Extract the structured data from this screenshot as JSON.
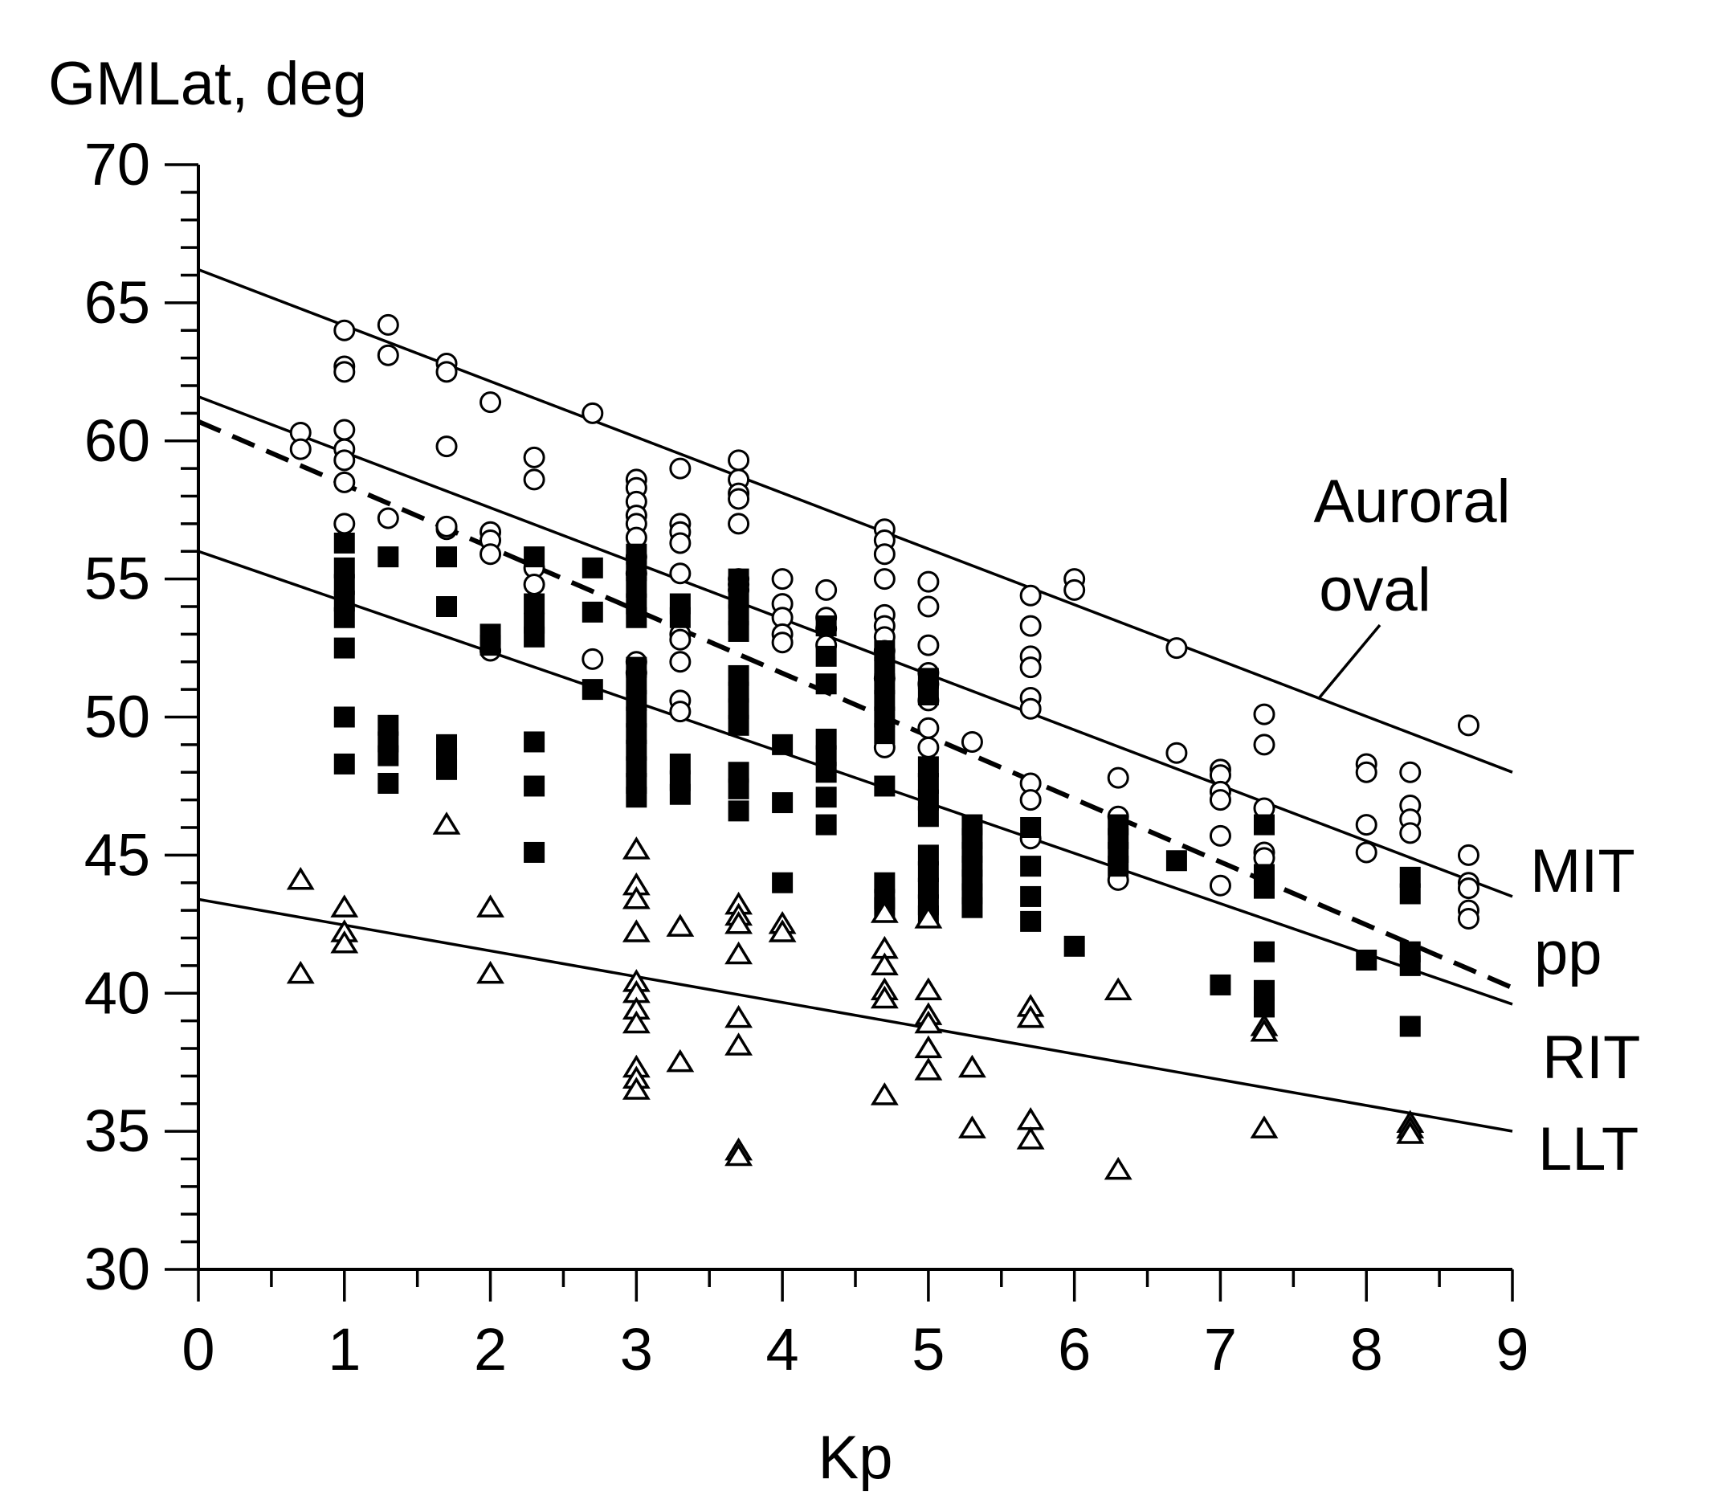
{
  "chart_data": {
    "type": "scatter",
    "title": "",
    "xlabel": "Kp",
    "ylabel": "GMLat, deg",
    "xlim": [
      0,
      9
    ],
    "ylim": [
      30,
      70
    ],
    "xticks": [
      0,
      1,
      2,
      3,
      4,
      5,
      6,
      7,
      8,
      9
    ],
    "yticks": [
      30,
      35,
      40,
      45,
      50,
      55,
      60,
      65,
      70
    ],
    "grid": false,
    "colors": {
      "ink": "#000000",
      "background": "#ffffff"
    },
    "series": [
      {
        "name": "Auroral oval",
        "marker": "open-circle",
        "points": [
          [
            0.7,
            60.3
          ],
          [
            0.7,
            59.7
          ],
          [
            1,
            64
          ],
          [
            1,
            62.7
          ],
          [
            1,
            62.5
          ],
          [
            1,
            60.4
          ],
          [
            1,
            59.7
          ],
          [
            1,
            59.3
          ],
          [
            1,
            58.5
          ],
          [
            1,
            57
          ],
          [
            1.3,
            64.2
          ],
          [
            1.3,
            63.1
          ],
          [
            1.3,
            57.2
          ],
          [
            1.7,
            62.8
          ],
          [
            1.7,
            62.5
          ],
          [
            1.7,
            59.8
          ],
          [
            1.7,
            56.8
          ],
          [
            2,
            61.4
          ],
          [
            2,
            56.7
          ],
          [
            2,
            56.4
          ],
          [
            2,
            55.9
          ],
          [
            2,
            52.4
          ],
          [
            2.3,
            59.4
          ],
          [
            2.3,
            58.6
          ],
          [
            2.3,
            55.4
          ],
          [
            2.3,
            54.8
          ],
          [
            2.7,
            61
          ],
          [
            2.7,
            52.1
          ],
          [
            3,
            58.6
          ],
          [
            3,
            58.3
          ],
          [
            3,
            57.8
          ],
          [
            3,
            57.3
          ],
          [
            3,
            57
          ],
          [
            3,
            56.5
          ],
          [
            3,
            55.8
          ],
          [
            3,
            55.2
          ],
          [
            3,
            52
          ],
          [
            3,
            51.6
          ],
          [
            3.3,
            59
          ],
          [
            3.3,
            57
          ],
          [
            3.3,
            56.7
          ],
          [
            3.3,
            56.3
          ],
          [
            3.3,
            55.2
          ],
          [
            3.3,
            53
          ],
          [
            3.3,
            52.8
          ],
          [
            3.3,
            52
          ],
          [
            3.3,
            50.6
          ],
          [
            3.3,
            50.2
          ],
          [
            3.7,
            59.3
          ],
          [
            3.7,
            58.6
          ],
          [
            3.7,
            58.1
          ],
          [
            3.7,
            57.9
          ],
          [
            3.7,
            57
          ],
          [
            3.7,
            55
          ],
          [
            3.7,
            54.8
          ],
          [
            3.7,
            54.6
          ],
          [
            4,
            55
          ],
          [
            4,
            54.1
          ],
          [
            4,
            53.6
          ],
          [
            4,
            53
          ],
          [
            4,
            52.7
          ],
          [
            4.3,
            54.6
          ],
          [
            4.3,
            53.6
          ],
          [
            4.3,
            53.2
          ],
          [
            4.3,
            52.6
          ],
          [
            4.7,
            56.8
          ],
          [
            4.7,
            56.4
          ],
          [
            4.7,
            55.9
          ],
          [
            4.7,
            55
          ],
          [
            4.7,
            53.7
          ],
          [
            4.7,
            53.3
          ],
          [
            4.7,
            52.9
          ],
          [
            4.7,
            52.4
          ],
          [
            4.7,
            51.4
          ],
          [
            4.7,
            48.9
          ],
          [
            5,
            54.9
          ],
          [
            5,
            54
          ],
          [
            5,
            52.6
          ],
          [
            5,
            51.6
          ],
          [
            5,
            51.2
          ],
          [
            5,
            50.6
          ],
          [
            5,
            49.6
          ],
          [
            5,
            48.9
          ],
          [
            5.3,
            49.1
          ],
          [
            5.7,
            54.4
          ],
          [
            5.7,
            53.3
          ],
          [
            5.7,
            52.2
          ],
          [
            5.7,
            51.8
          ],
          [
            5.7,
            50.7
          ],
          [
            5.7,
            50.3
          ],
          [
            5.7,
            47.6
          ],
          [
            5.7,
            47
          ],
          [
            5.7,
            45.6
          ],
          [
            6,
            55
          ],
          [
            6,
            54.6
          ],
          [
            6.3,
            47.8
          ],
          [
            6.3,
            46.4
          ],
          [
            6.3,
            44.1
          ],
          [
            6.7,
            52.5
          ],
          [
            6.7,
            48.7
          ],
          [
            7,
            48.1
          ],
          [
            7,
            47.9
          ],
          [
            7,
            47.3
          ],
          [
            7,
            47
          ],
          [
            7,
            45.7
          ],
          [
            7,
            43.9
          ],
          [
            7.3,
            50.1
          ],
          [
            7.3,
            49
          ],
          [
            7.3,
            46.7
          ],
          [
            7.3,
            45.1
          ],
          [
            7.3,
            44.9
          ],
          [
            8,
            48.3
          ],
          [
            8,
            48
          ],
          [
            8,
            46.1
          ],
          [
            8,
            45.1
          ],
          [
            8.3,
            48
          ],
          [
            8.3,
            46.8
          ],
          [
            8.3,
            46.3
          ],
          [
            8.3,
            45.8
          ],
          [
            8.7,
            49.7
          ],
          [
            8.7,
            45
          ],
          [
            8.7,
            44
          ],
          [
            8.7,
            43.8
          ],
          [
            8.7,
            43
          ],
          [
            8.7,
            42.7
          ]
        ]
      },
      {
        "name": "RIT",
        "marker": "filled-square",
        "points": [
          [
            1,
            56.3
          ],
          [
            1,
            55.4
          ],
          [
            1,
            54.8
          ],
          [
            1,
            54.2
          ],
          [
            1,
            53.6
          ],
          [
            1,
            52.5
          ],
          [
            1,
            50
          ],
          [
            1,
            48.3
          ],
          [
            1.3,
            55.8
          ],
          [
            1.3,
            49.7
          ],
          [
            1.3,
            49.1
          ],
          [
            1.3,
            48.6
          ],
          [
            1.3,
            47.6
          ],
          [
            1.7,
            55.8
          ],
          [
            1.7,
            54
          ],
          [
            1.7,
            49
          ],
          [
            1.7,
            48.5
          ],
          [
            1.7,
            48.1
          ],
          [
            2,
            53
          ],
          [
            2,
            52.6
          ],
          [
            2.3,
            55.8
          ],
          [
            2.3,
            54.1
          ],
          [
            2.3,
            53.4
          ],
          [
            2.3,
            52.9
          ],
          [
            2.3,
            49.1
          ],
          [
            2.3,
            47.5
          ],
          [
            2.3,
            45.1
          ],
          [
            2.7,
            55.4
          ],
          [
            2.7,
            53.8
          ],
          [
            2.7,
            51
          ],
          [
            3,
            55.9
          ],
          [
            3,
            55.3
          ],
          [
            3,
            54.7
          ],
          [
            3,
            54.1
          ],
          [
            3,
            53.6
          ],
          [
            3,
            51.8
          ],
          [
            3,
            51.2
          ],
          [
            3,
            50.6
          ],
          [
            3,
            50
          ],
          [
            3,
            49.4
          ],
          [
            3,
            48.8
          ],
          [
            3,
            48.2
          ],
          [
            3,
            47.6
          ],
          [
            3,
            47.1
          ],
          [
            3.3,
            54.1
          ],
          [
            3.3,
            53.6
          ],
          [
            3.3,
            48.3
          ],
          [
            3.3,
            47.7
          ],
          [
            3.3,
            47.2
          ],
          [
            3.7,
            55
          ],
          [
            3.7,
            54.3
          ],
          [
            3.7,
            53.7
          ],
          [
            3.7,
            53.1
          ],
          [
            3.7,
            51.5
          ],
          [
            3.7,
            50.9
          ],
          [
            3.7,
            50.3
          ],
          [
            3.7,
            49.7
          ],
          [
            3.7,
            48
          ],
          [
            3.7,
            47.4
          ],
          [
            3.7,
            46.6
          ],
          [
            4,
            49
          ],
          [
            4,
            46.9
          ],
          [
            4,
            44
          ],
          [
            4.3,
            53.3
          ],
          [
            4.3,
            52.2
          ],
          [
            4.3,
            51.2
          ],
          [
            4.3,
            49.2
          ],
          [
            4.3,
            48.6
          ],
          [
            4.3,
            48
          ],
          [
            4.3,
            47.1
          ],
          [
            4.3,
            46.1
          ],
          [
            4.7,
            52.4
          ],
          [
            4.7,
            51.8
          ],
          [
            4.7,
            51.2
          ],
          [
            4.7,
            50.6
          ],
          [
            4.7,
            50
          ],
          [
            4.7,
            49.4
          ],
          [
            4.7,
            47.5
          ],
          [
            4.7,
            44
          ],
          [
            4.7,
            43.4
          ],
          [
            4.7,
            43.1
          ],
          [
            5,
            51.4
          ],
          [
            5,
            50.8
          ],
          [
            5,
            48.2
          ],
          [
            5,
            47.6
          ],
          [
            5,
            47
          ],
          [
            5,
            46.4
          ],
          [
            5,
            45
          ],
          [
            5,
            44.4
          ],
          [
            5,
            43.8
          ],
          [
            5,
            43.2
          ],
          [
            5,
            42.8
          ],
          [
            5.3,
            46.1
          ],
          [
            5.3,
            45.6
          ],
          [
            5.3,
            45.1
          ],
          [
            5.3,
            44.6
          ],
          [
            5.3,
            44.1
          ],
          [
            5.3,
            43.6
          ],
          [
            5.3,
            43.1
          ],
          [
            5.7,
            46
          ],
          [
            5.7,
            44.6
          ],
          [
            5.7,
            43.5
          ],
          [
            5.7,
            42.6
          ],
          [
            6,
            41.7
          ],
          [
            6.3,
            46.1
          ],
          [
            6.3,
            45.6
          ],
          [
            6.3,
            45.1
          ],
          [
            6.3,
            44.6
          ],
          [
            6.7,
            44.8
          ],
          [
            7,
            40.3
          ],
          [
            7.3,
            46.1
          ],
          [
            7.3,
            44.3
          ],
          [
            7.3,
            43.8
          ],
          [
            7.3,
            41.5
          ],
          [
            7.3,
            40.1
          ],
          [
            7.3,
            39.5
          ],
          [
            8,
            41.2
          ],
          [
            8.3,
            44.2
          ],
          [
            8.3,
            43.6
          ],
          [
            8.3,
            41.5
          ],
          [
            8.3,
            41
          ],
          [
            8.3,
            38.8
          ]
        ]
      },
      {
        "name": "LLT",
        "marker": "open-triangle",
        "points": [
          [
            0.7,
            44.1
          ],
          [
            0.7,
            40.7
          ],
          [
            1,
            43.1
          ],
          [
            1,
            42.2
          ],
          [
            1,
            41.8
          ],
          [
            1.7,
            46.1
          ],
          [
            2,
            43.1
          ],
          [
            2,
            40.7
          ],
          [
            3,
            45.2
          ],
          [
            3,
            43.9
          ],
          [
            3,
            43.4
          ],
          [
            3,
            42.2
          ],
          [
            3,
            40.4
          ],
          [
            3,
            40
          ],
          [
            3,
            39.4
          ],
          [
            3,
            38.9
          ],
          [
            3,
            37.3
          ],
          [
            3,
            36.9
          ],
          [
            3,
            36.5
          ],
          [
            3.3,
            42.4
          ],
          [
            3.3,
            37.5
          ],
          [
            3.7,
            43.2
          ],
          [
            3.7,
            42.8
          ],
          [
            3.7,
            42.5
          ],
          [
            3.7,
            41.4
          ],
          [
            3.7,
            39.1
          ],
          [
            3.7,
            38.1
          ],
          [
            3.7,
            34.3
          ],
          [
            3.7,
            34.1
          ],
          [
            4,
            42.5
          ],
          [
            4,
            42.2
          ],
          [
            4.7,
            42.9
          ],
          [
            4.7,
            41.6
          ],
          [
            4.7,
            41
          ],
          [
            4.7,
            40.1
          ],
          [
            4.7,
            39.8
          ],
          [
            4.7,
            36.3
          ],
          [
            5,
            42.7
          ],
          [
            5,
            40.1
          ],
          [
            5,
            39.2
          ],
          [
            5,
            38.9
          ],
          [
            5,
            38
          ],
          [
            5,
            37.2
          ],
          [
            5.3,
            37.3
          ],
          [
            5.3,
            35.1
          ],
          [
            5.7,
            39.5
          ],
          [
            5.7,
            39.1
          ],
          [
            5.7,
            35.4
          ],
          [
            5.7,
            34.7
          ],
          [
            6.3,
            40.1
          ],
          [
            6.3,
            33.6
          ],
          [
            7.3,
            38.8
          ],
          [
            7.3,
            38.6
          ],
          [
            7.3,
            35.1
          ],
          [
            8.3,
            35.3
          ],
          [
            8.3,
            35.1
          ],
          [
            8.3,
            34.9
          ]
        ]
      },
      {
        "name": "pp",
        "marker": "open-circle",
        "points": [
          [
            1.7,
            56.9
          ]
        ]
      }
    ],
    "fit_lines": [
      {
        "name": "Auroral oval",
        "style": "solid",
        "intercept": 66.2,
        "slope": -2.022
      },
      {
        "name": "MIT",
        "style": "solid",
        "intercept": 61.6,
        "slope": -2.011
      },
      {
        "name": "pp",
        "style": "dashed",
        "intercept": 60.7,
        "slope": -2.278
      },
      {
        "name": "RIT",
        "style": "solid",
        "intercept": 56.0,
        "slope": -1.822
      },
      {
        "name": "LLT",
        "style": "solid",
        "intercept": 43.4,
        "slope": -0.933
      }
    ],
    "line_labels": {
      "auroral_line1": "Auroral",
      "auroral_line2": "oval",
      "mit": "MIT",
      "pp": "pp",
      "rit": "RIT",
      "llt": "LLT"
    }
  }
}
